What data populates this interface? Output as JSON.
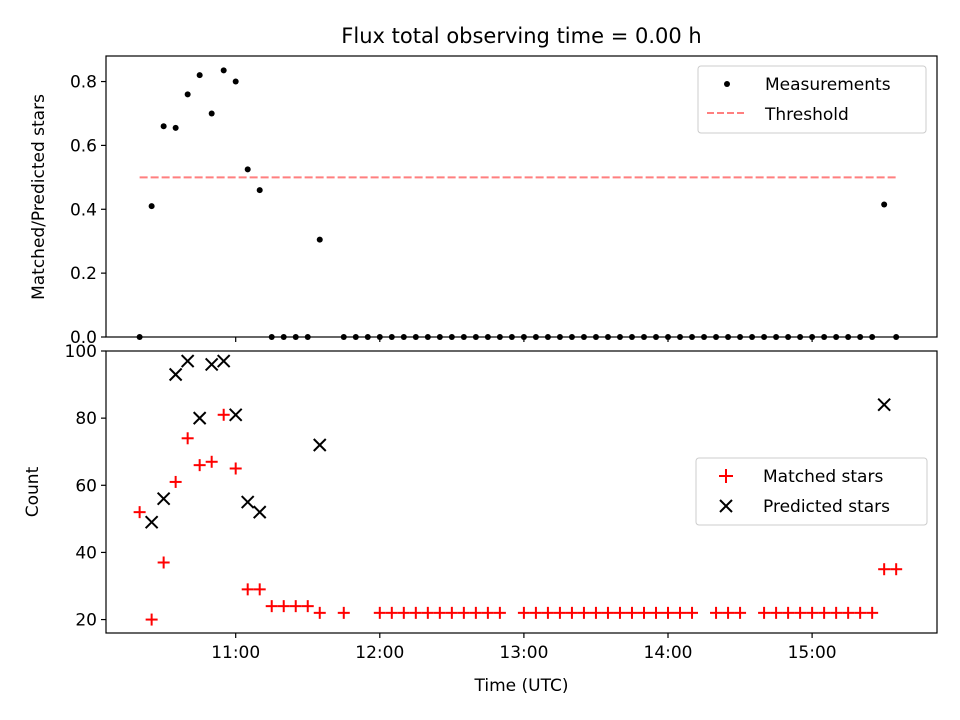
{
  "title": "Flux total observing time = 0.00 h",
  "chart_data": [
    {
      "type": "scatter",
      "title": "Flux total observing time = 0.00 h",
      "xlabel": "",
      "ylabel": "Matched/Predicted stars",
      "ylim": [
        0,
        0.88
      ],
      "yticks": [
        "0.0",
        "0.2",
        "0.4",
        "0.6",
        "0.8"
      ],
      "ytick_values": [
        0,
        0.2,
        0.4,
        0.6,
        0.8
      ],
      "legend_position": "top-right",
      "series": [
        {
          "name": "Measurements",
          "kind": "scatter-dot",
          "color": "#000000",
          "x": [
            "10:20",
            "10:25",
            "10:30",
            "10:35",
            "10:40",
            "10:45",
            "10:50",
            "10:55",
            "11:00",
            "11:05",
            "11:10",
            "11:15",
            "11:20",
            "11:25",
            "11:30",
            "11:35",
            "11:45",
            "11:50",
            "11:55",
            "12:00",
            "12:05",
            "12:10",
            "12:15",
            "12:20",
            "12:25",
            "12:30",
            "12:35",
            "12:40",
            "12:45",
            "12:50",
            "12:55",
            "13:00",
            "13:05",
            "13:10",
            "13:15",
            "13:20",
            "13:25",
            "13:30",
            "13:35",
            "13:40",
            "13:45",
            "13:50",
            "13:55",
            "14:00",
            "14:05",
            "14:10",
            "14:15",
            "14:20",
            "14:25",
            "14:30",
            "14:35",
            "14:40",
            "14:45",
            "14:50",
            "14:55",
            "15:00",
            "15:05",
            "15:10",
            "15:15",
            "15:20",
            "15:25",
            "15:30",
            "15:35"
          ],
          "y": [
            0,
            0.41,
            0.66,
            0.655,
            0.76,
            0.82,
            0.7,
            0.835,
            0.8,
            0.525,
            0.46,
            0,
            0,
            0,
            0,
            0.305,
            0,
            0,
            0,
            0,
            0,
            0,
            0,
            0,
            0,
            0,
            0,
            0,
            0,
            0,
            0,
            0,
            0,
            0,
            0,
            0,
            0,
            0,
            0,
            0,
            0,
            0,
            0,
            0,
            0,
            0,
            0,
            0,
            0,
            0,
            0,
            0,
            0,
            0,
            0,
            0,
            0,
            0,
            0,
            0,
            0,
            0.415,
            0
          ]
        },
        {
          "name": "Threshold",
          "kind": "dashed-line",
          "color": "#ff7f7f",
          "x": [
            "10:20",
            "15:35"
          ],
          "y": [
            0.5,
            0.5
          ]
        }
      ]
    },
    {
      "type": "scatter",
      "xlabel": "Time (UTC)",
      "ylabel": "Count",
      "ylim": [
        16,
        100
      ],
      "yticks": [
        "20",
        "40",
        "60",
        "80",
        "100"
      ],
      "ytick_values": [
        20,
        40,
        60,
        80,
        100
      ],
      "xlim": [
        "10:06",
        "15:52"
      ],
      "xticks": [
        "11:00",
        "12:00",
        "13:00",
        "14:00",
        "15:00"
      ],
      "legend_position": "center-right",
      "series": [
        {
          "name": "Matched stars",
          "kind": "plus",
          "color": "#ff0000",
          "x": [
            "10:20",
            "10:25",
            "10:30",
            "10:35",
            "10:40",
            "10:45",
            "10:50",
            "10:55",
            "11:00",
            "11:05",
            "11:10",
            "11:15",
            "11:20",
            "11:25",
            "11:30",
            "11:35",
            "11:45",
            "12:00",
            "12:05",
            "12:10",
            "12:15",
            "12:20",
            "12:25",
            "12:30",
            "12:35",
            "12:40",
            "12:45",
            "12:50",
            "13:00",
            "13:05",
            "13:10",
            "13:15",
            "13:20",
            "13:25",
            "13:30",
            "13:35",
            "13:40",
            "13:45",
            "13:50",
            "13:55",
            "14:00",
            "14:05",
            "14:10",
            "14:20",
            "14:25",
            "14:30",
            "14:40",
            "14:45",
            "14:50",
            "14:55",
            "15:00",
            "15:05",
            "15:10",
            "15:15",
            "15:20",
            "15:25",
            "15:30",
            "15:35"
          ],
          "y": [
            52,
            20,
            37,
            61,
            74,
            66,
            67,
            81,
            65,
            29,
            29,
            24,
            24,
            24,
            24,
            22,
            22,
            22,
            22,
            22,
            22,
            22,
            22,
            22,
            22,
            22,
            22,
            22,
            22,
            22,
            22,
            22,
            22,
            22,
            22,
            22,
            22,
            22,
            22,
            22,
            22,
            22,
            22,
            22,
            22,
            22,
            22,
            22,
            22,
            22,
            22,
            22,
            22,
            22,
            22,
            22,
            35,
            35
          ]
        },
        {
          "name": "Predicted stars",
          "kind": "x",
          "color": "#000000",
          "x": [
            "10:25",
            "10:30",
            "10:35",
            "10:40",
            "10:45",
            "10:50",
            "10:55",
            "11:00",
            "11:05",
            "11:10",
            "11:35",
            "15:30"
          ],
          "y": [
            49,
            56,
            93,
            97,
            80,
            96,
            97,
            81,
            55,
            52,
            72,
            84
          ]
        }
      ]
    }
  ]
}
